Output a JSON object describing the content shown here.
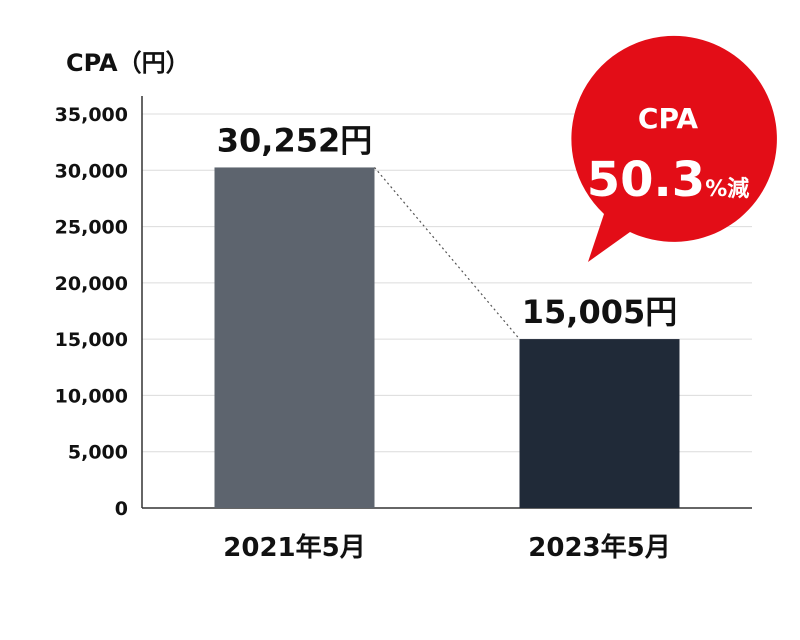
{
  "chart_data": {
    "type": "bar",
    "ylabel": "CPA（円）",
    "categories": [
      "2021年5月",
      "2023年5月"
    ],
    "values": [
      30252,
      15005
    ],
    "data_labels": [
      "30,252円",
      "15,005円"
    ],
    "yticks": [
      "35,000",
      "30,000",
      "25,000",
      "20,000",
      "15,000",
      "10,000",
      "5,000",
      "0"
    ],
    "ylim": [
      0,
      35000
    ],
    "grid": true,
    "legend": "none",
    "colors": [
      "#5d646e",
      "#202a38"
    ],
    "annotation": {
      "line1": "CPA",
      "value": "50.3",
      "suffix": "%減",
      "color": "#e30d17"
    }
  }
}
